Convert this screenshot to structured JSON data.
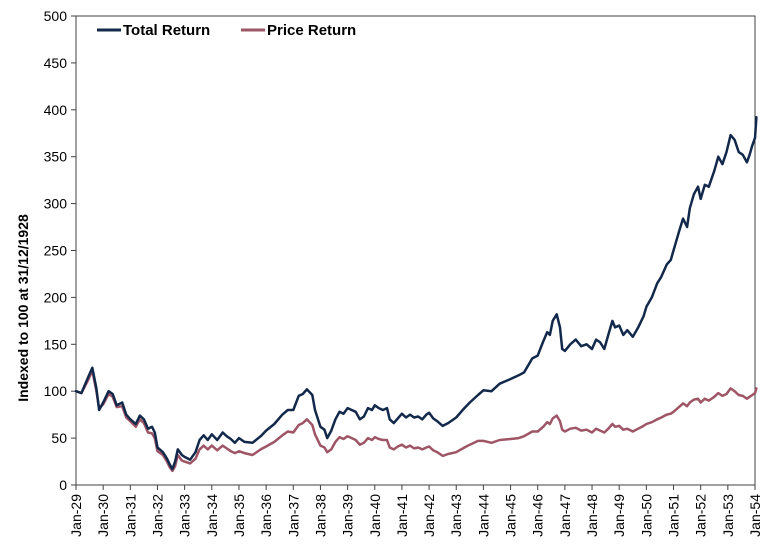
{
  "chart_data": {
    "type": "line",
    "ylabel": "Indexed to 100 at 31/12/1928",
    "xlabel": "",
    "ylim": [
      0,
      500
    ],
    "yticks": [
      0,
      50,
      100,
      150,
      200,
      250,
      300,
      350,
      400,
      450,
      500
    ],
    "xlim": [
      1929,
      1954
    ],
    "categories": [
      "Jan-29",
      "Jan-30",
      "Jan-31",
      "Jan-32",
      "Jan-33",
      "Jan-34",
      "Jan-35",
      "Jan-36",
      "Jan-37",
      "Jan-38",
      "Jan-39",
      "Jan-40",
      "Jan-41",
      "Jan-42",
      "Jan-43",
      "Jan-44",
      "Jan-45",
      "Jan-46",
      "Jan-47",
      "Jan-48",
      "Jan-49",
      "Jan-50",
      "Jan-51",
      "Jan-52",
      "Jan-53",
      "Jan-54"
    ],
    "grid": false,
    "legend_position": "top-left",
    "series": [
      {
        "name": "Total Return",
        "color": "#13294b",
        "points": [
          [
            1929.0,
            100
          ],
          [
            1929.2,
            98
          ],
          [
            1929.45,
            115
          ],
          [
            1929.6,
            125
          ],
          [
            1929.75,
            103
          ],
          [
            1929.85,
            80
          ],
          [
            1930.0,
            88
          ],
          [
            1930.2,
            100
          ],
          [
            1930.35,
            97
          ],
          [
            1930.5,
            85
          ],
          [
            1930.7,
            88
          ],
          [
            1930.85,
            75
          ],
          [
            1931.0,
            70
          ],
          [
            1931.2,
            65
          ],
          [
            1931.35,
            74
          ],
          [
            1931.5,
            70
          ],
          [
            1931.65,
            60
          ],
          [
            1931.8,
            62
          ],
          [
            1931.9,
            56
          ],
          [
            1932.0,
            40
          ],
          [
            1932.2,
            35
          ],
          [
            1932.35,
            28
          ],
          [
            1932.45,
            22
          ],
          [
            1932.55,
            17
          ],
          [
            1932.65,
            25
          ],
          [
            1932.75,
            38
          ],
          [
            1932.9,
            32
          ],
          [
            1933.0,
            30
          ],
          [
            1933.2,
            27
          ],
          [
            1933.4,
            35
          ],
          [
            1933.55,
            48
          ],
          [
            1933.7,
            53
          ],
          [
            1933.85,
            48
          ],
          [
            1934.0,
            54
          ],
          [
            1934.2,
            48
          ],
          [
            1934.4,
            56
          ],
          [
            1934.55,
            52
          ],
          [
            1934.7,
            49
          ],
          [
            1934.85,
            45
          ],
          [
            1935.0,
            50
          ],
          [
            1935.2,
            46
          ],
          [
            1935.5,
            45
          ],
          [
            1935.8,
            52
          ],
          [
            1936.0,
            58
          ],
          [
            1936.3,
            65
          ],
          [
            1936.6,
            75
          ],
          [
            1936.8,
            80
          ],
          [
            1937.0,
            80
          ],
          [
            1937.2,
            95
          ],
          [
            1937.35,
            97
          ],
          [
            1937.5,
            102
          ],
          [
            1937.7,
            96
          ],
          [
            1937.8,
            80
          ],
          [
            1938.0,
            62
          ],
          [
            1938.15,
            59
          ],
          [
            1938.25,
            50
          ],
          [
            1938.4,
            58
          ],
          [
            1938.55,
            70
          ],
          [
            1938.7,
            78
          ],
          [
            1938.85,
            76
          ],
          [
            1939.0,
            82
          ],
          [
            1939.15,
            80
          ],
          [
            1939.3,
            78
          ],
          [
            1939.45,
            70
          ],
          [
            1939.6,
            73
          ],
          [
            1939.75,
            82
          ],
          [
            1939.9,
            80
          ],
          [
            1940.0,
            85
          ],
          [
            1940.15,
            82
          ],
          [
            1940.3,
            80
          ],
          [
            1940.45,
            82
          ],
          [
            1940.55,
            70
          ],
          [
            1940.7,
            66
          ],
          [
            1940.85,
            71
          ],
          [
            1941.0,
            76
          ],
          [
            1941.15,
            72
          ],
          [
            1941.3,
            75
          ],
          [
            1941.45,
            72
          ],
          [
            1941.6,
            73
          ],
          [
            1941.75,
            70
          ],
          [
            1941.9,
            75
          ],
          [
            1942.0,
            77
          ],
          [
            1942.15,
            71
          ],
          [
            1942.3,
            68
          ],
          [
            1942.5,
            63
          ],
          [
            1942.7,
            66
          ],
          [
            1943.0,
            72
          ],
          [
            1943.3,
            82
          ],
          [
            1943.5,
            88
          ],
          [
            1943.8,
            96
          ],
          [
            1944.0,
            101
          ],
          [
            1944.3,
            100
          ],
          [
            1944.6,
            108
          ],
          [
            1945.0,
            113
          ],
          [
            1945.3,
            117
          ],
          [
            1945.5,
            120
          ],
          [
            1945.8,
            135
          ],
          [
            1946.0,
            138
          ],
          [
            1946.2,
            153
          ],
          [
            1946.35,
            163
          ],
          [
            1946.45,
            160
          ],
          [
            1946.55,
            175
          ],
          [
            1946.7,
            182
          ],
          [
            1946.82,
            168
          ],
          [
            1946.9,
            145
          ],
          [
            1947.0,
            143
          ],
          [
            1947.2,
            150
          ],
          [
            1947.4,
            155
          ],
          [
            1947.6,
            148
          ],
          [
            1947.8,
            150
          ],
          [
            1948.0,
            145
          ],
          [
            1948.15,
            155
          ],
          [
            1948.3,
            152
          ],
          [
            1948.45,
            145
          ],
          [
            1948.6,
            160
          ],
          [
            1948.75,
            175
          ],
          [
            1948.85,
            168
          ],
          [
            1949.0,
            170
          ],
          [
            1949.15,
            160
          ],
          [
            1949.3,
            165
          ],
          [
            1949.5,
            158
          ],
          [
            1949.7,
            168
          ],
          [
            1949.9,
            180
          ],
          [
            1950.0,
            190
          ],
          [
            1950.2,
            200
          ],
          [
            1950.4,
            215
          ],
          [
            1950.55,
            222
          ],
          [
            1950.75,
            235
          ],
          [
            1950.9,
            240
          ],
          [
            1951.0,
            250
          ],
          [
            1951.2,
            270
          ],
          [
            1951.35,
            284
          ],
          [
            1951.5,
            275
          ],
          [
            1951.6,
            295
          ],
          [
            1951.75,
            310
          ],
          [
            1951.9,
            318
          ],
          [
            1952.0,
            305
          ],
          [
            1952.15,
            320
          ],
          [
            1952.3,
            318
          ],
          [
            1952.5,
            335
          ],
          [
            1952.65,
            350
          ],
          [
            1952.8,
            342
          ],
          [
            1952.95,
            355
          ],
          [
            1953.1,
            373
          ],
          [
            1953.25,
            368
          ],
          [
            1953.4,
            355
          ],
          [
            1953.55,
            352
          ],
          [
            1953.7,
            344
          ],
          [
            1953.8,
            352
          ],
          [
            1953.9,
            362
          ],
          [
            1954.0,
            370
          ],
          [
            1954.05,
            392
          ]
        ]
      },
      {
        "name": "Price Return",
        "color": "#9e5566",
        "points": [
          [
            1929.0,
            100
          ],
          [
            1929.2,
            98
          ],
          [
            1929.45,
            112
          ],
          [
            1929.6,
            122
          ],
          [
            1929.75,
            100
          ],
          [
            1929.85,
            82
          ],
          [
            1930.0,
            86
          ],
          [
            1930.2,
            97
          ],
          [
            1930.35,
            94
          ],
          [
            1930.5,
            83
          ],
          [
            1930.7,
            84
          ],
          [
            1930.85,
            72
          ],
          [
            1931.0,
            68
          ],
          [
            1931.2,
            62
          ],
          [
            1931.35,
            70
          ],
          [
            1931.5,
            66
          ],
          [
            1931.65,
            56
          ],
          [
            1931.8,
            55
          ],
          [
            1931.9,
            50
          ],
          [
            1932.0,
            36
          ],
          [
            1932.2,
            32
          ],
          [
            1932.35,
            25
          ],
          [
            1932.45,
            19
          ],
          [
            1932.55,
            15
          ],
          [
            1932.65,
            20
          ],
          [
            1932.75,
            32
          ],
          [
            1932.9,
            26
          ],
          [
            1933.0,
            25
          ],
          [
            1933.2,
            23
          ],
          [
            1933.4,
            28
          ],
          [
            1933.55,
            38
          ],
          [
            1933.7,
            42
          ],
          [
            1933.85,
            38
          ],
          [
            1934.0,
            42
          ],
          [
            1934.2,
            37
          ],
          [
            1934.4,
            42
          ],
          [
            1934.55,
            39
          ],
          [
            1934.7,
            36
          ],
          [
            1934.85,
            34
          ],
          [
            1935.0,
            36
          ],
          [
            1935.2,
            34
          ],
          [
            1935.5,
            32
          ],
          [
            1935.8,
            38
          ],
          [
            1936.0,
            41
          ],
          [
            1936.3,
            46
          ],
          [
            1936.6,
            53
          ],
          [
            1936.8,
            57
          ],
          [
            1937.0,
            56
          ],
          [
            1937.2,
            64
          ],
          [
            1937.35,
            66
          ],
          [
            1937.5,
            70
          ],
          [
            1937.7,
            64
          ],
          [
            1937.8,
            54
          ],
          [
            1938.0,
            42
          ],
          [
            1938.15,
            40
          ],
          [
            1938.25,
            35
          ],
          [
            1938.4,
            38
          ],
          [
            1938.55,
            46
          ],
          [
            1938.7,
            51
          ],
          [
            1938.85,
            49
          ],
          [
            1939.0,
            52
          ],
          [
            1939.15,
            50
          ],
          [
            1939.3,
            48
          ],
          [
            1939.45,
            43
          ],
          [
            1939.6,
            45
          ],
          [
            1939.75,
            50
          ],
          [
            1939.9,
            48
          ],
          [
            1940.0,
            51
          ],
          [
            1940.15,
            49
          ],
          [
            1940.3,
            48
          ],
          [
            1940.45,
            48
          ],
          [
            1940.55,
            40
          ],
          [
            1940.7,
            38
          ],
          [
            1940.85,
            41
          ],
          [
            1941.0,
            43
          ],
          [
            1941.15,
            40
          ],
          [
            1941.3,
            42
          ],
          [
            1941.45,
            39
          ],
          [
            1941.6,
            40
          ],
          [
            1941.75,
            38
          ],
          [
            1941.9,
            40
          ],
          [
            1942.0,
            41
          ],
          [
            1942.15,
            37
          ],
          [
            1942.3,
            35
          ],
          [
            1942.5,
            31
          ],
          [
            1942.7,
            33
          ],
          [
            1943.0,
            35
          ],
          [
            1943.3,
            40
          ],
          [
            1943.5,
            43
          ],
          [
            1943.8,
            47
          ],
          [
            1944.0,
            47
          ],
          [
            1944.3,
            45
          ],
          [
            1944.6,
            48
          ],
          [
            1945.0,
            49
          ],
          [
            1945.3,
            50
          ],
          [
            1945.5,
            52
          ],
          [
            1945.8,
            57
          ],
          [
            1946.0,
            57
          ],
          [
            1946.2,
            62
          ],
          [
            1946.35,
            67
          ],
          [
            1946.45,
            65
          ],
          [
            1946.55,
            71
          ],
          [
            1946.7,
            74
          ],
          [
            1946.82,
            68
          ],
          [
            1946.9,
            59
          ],
          [
            1947.0,
            57
          ],
          [
            1947.2,
            60
          ],
          [
            1947.4,
            61
          ],
          [
            1947.6,
            58
          ],
          [
            1947.8,
            59
          ],
          [
            1948.0,
            56
          ],
          [
            1948.15,
            60
          ],
          [
            1948.3,
            58
          ],
          [
            1948.45,
            56
          ],
          [
            1948.6,
            60
          ],
          [
            1948.75,
            65
          ],
          [
            1948.85,
            62
          ],
          [
            1949.0,
            63
          ],
          [
            1949.15,
            59
          ],
          [
            1949.3,
            60
          ],
          [
            1949.5,
            57
          ],
          [
            1949.7,
            60
          ],
          [
            1949.9,
            63
          ],
          [
            1950.0,
            65
          ],
          [
            1950.2,
            67
          ],
          [
            1950.4,
            70
          ],
          [
            1950.55,
            72
          ],
          [
            1950.75,
            75
          ],
          [
            1950.9,
            76
          ],
          [
            1951.0,
            78
          ],
          [
            1951.2,
            83
          ],
          [
            1951.35,
            87
          ],
          [
            1951.5,
            84
          ],
          [
            1951.6,
            88
          ],
          [
            1951.75,
            91
          ],
          [
            1951.9,
            92
          ],
          [
            1952.0,
            88
          ],
          [
            1952.15,
            92
          ],
          [
            1952.3,
            90
          ],
          [
            1952.5,
            94
          ],
          [
            1952.65,
            98
          ],
          [
            1952.8,
            95
          ],
          [
            1952.95,
            97
          ],
          [
            1953.1,
            103
          ],
          [
            1953.25,
            100
          ],
          [
            1953.4,
            96
          ],
          [
            1953.55,
            95
          ],
          [
            1953.7,
            92
          ],
          [
            1953.8,
            94
          ],
          [
            1953.9,
            96
          ],
          [
            1954.0,
            98
          ],
          [
            1954.05,
            103
          ]
        ]
      }
    ]
  }
}
